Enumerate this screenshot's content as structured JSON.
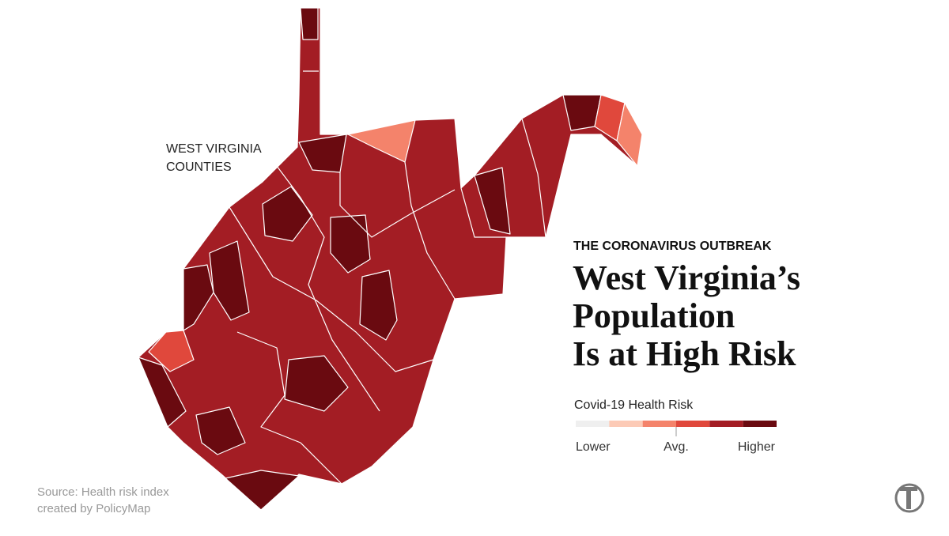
{
  "map_label": [
    "WEST VIRGINIA",
    "COUNTIES"
  ],
  "kicker": "THE CORONAVIRUS OUTBREAK",
  "title": [
    "West Virginia’s",
    "Population",
    "Is at High Risk"
  ],
  "legend": {
    "title": "Covid-19 Health Risk",
    "colors": [
      "#efefef",
      "#fccab6",
      "#f4836b",
      "#e0483c",
      "#a31d24",
      "#6a0a10"
    ],
    "labels": [
      "Lower",
      "Avg.",
      "Higher"
    ]
  },
  "source": [
    "Source: Health risk index",
    "created by PolicyMap"
  ]
}
